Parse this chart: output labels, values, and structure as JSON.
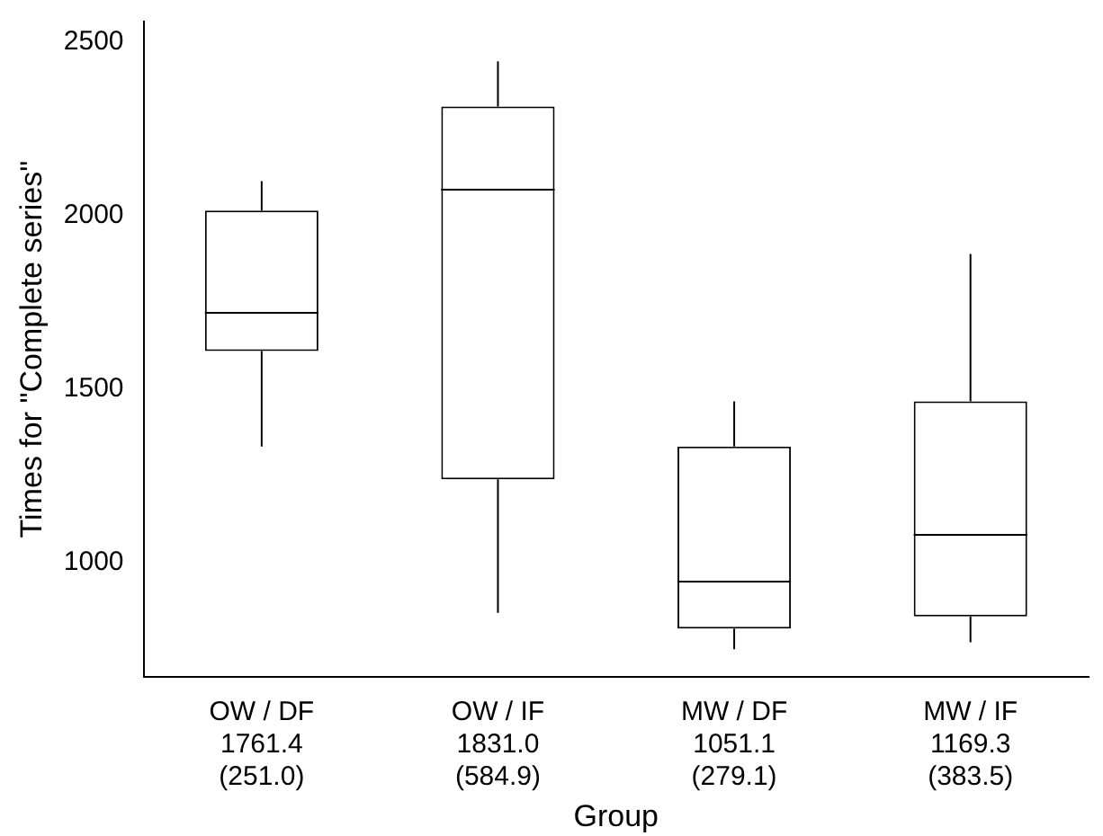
{
  "chart_data": {
    "type": "box",
    "xlabel": "Group",
    "ylabel": "Times for \"Complete series\"",
    "categories": [
      "OW / DF\n1761.4\n(251.0)",
      "OW / IF\n1831.0\n(584.9)",
      "MW / DF\n1051.1\n(279.1)",
      "MW / IF\n1169.3\n(383.5)"
    ],
    "boxes": [
      {
        "low": 1335,
        "q1": 1610,
        "median": 1720,
        "q3": 2015,
        "high": 2100
      },
      {
        "low": 855,
        "q1": 1240,
        "median": 2075,
        "q3": 2315,
        "high": 2445
      },
      {
        "low": 750,
        "q1": 810,
        "median": 945,
        "q3": 1335,
        "high": 1465
      },
      {
        "low": 770,
        "q1": 845,
        "median": 1080,
        "q3": 1465,
        "high": 1890
      }
    ],
    "color": "#000000",
    "ylim": [
      670,
      2560
    ],
    "yticks": [
      1000,
      1500,
      2000,
      2500
    ],
    "grid": false,
    "legend": false
  }
}
